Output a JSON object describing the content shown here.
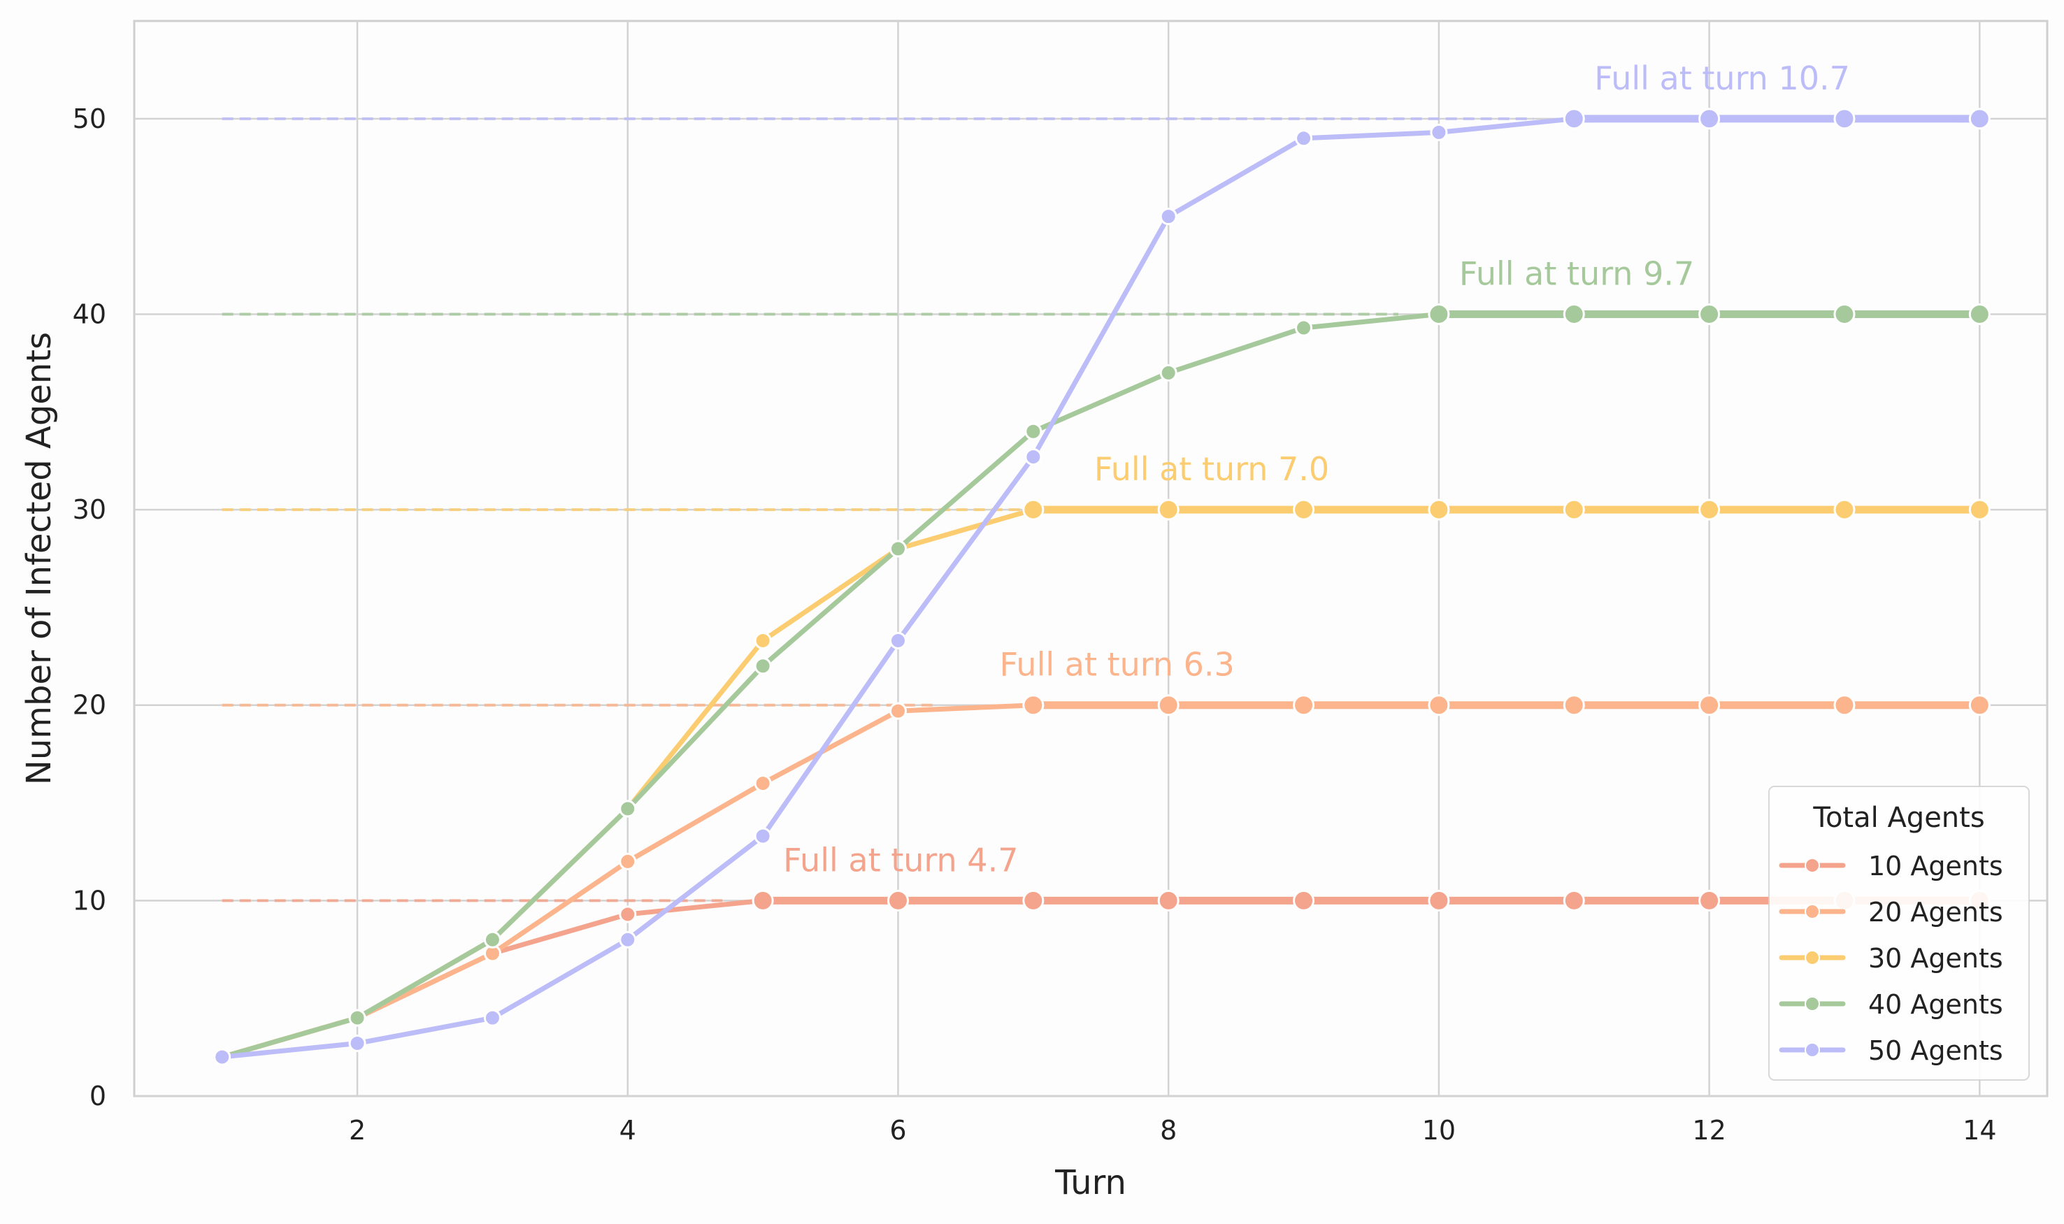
{
  "chart_data": {
    "type": "line",
    "title": "",
    "xlabel": "Turn",
    "ylabel": "Number of Infected Agents",
    "xlim": [
      0.35,
      14.5
    ],
    "ylim": [
      0,
      55
    ],
    "xticks": [
      2,
      4,
      6,
      8,
      10,
      12,
      14
    ],
    "yticks": [
      0,
      10,
      20,
      30,
      40,
      50
    ],
    "grid": true,
    "legend": {
      "title": "Total Agents",
      "placement": "lower-right"
    },
    "x": [
      1,
      2,
      3,
      4,
      5,
      6,
      7,
      8,
      9,
      10,
      11,
      12,
      13,
      14
    ],
    "series": [
      {
        "name": "10 Agents",
        "color": "#f4a48c",
        "total": 10,
        "full_turn": 4.7,
        "annotation": "Full at turn 4.7",
        "values": [
          2,
          4,
          7.3,
          9.3,
          10,
          10,
          10,
          10,
          10,
          10,
          10,
          10,
          10,
          10
        ]
      },
      {
        "name": "20 Agents",
        "color": "#fbb48c",
        "total": 20,
        "full_turn": 6.3,
        "annotation": "Full at turn 6.3",
        "values": [
          2,
          4,
          7.3,
          12,
          16,
          19.7,
          20,
          20,
          20,
          20,
          20,
          20,
          20,
          20
        ]
      },
      {
        "name": "30 Agents",
        "color": "#fbcd70",
        "total": 30,
        "full_turn": 7.0,
        "annotation": "Full at turn 7.0",
        "values": [
          2,
          4,
          8,
          14.7,
          23.3,
          28,
          30,
          30,
          30,
          30,
          30,
          30,
          30,
          30
        ]
      },
      {
        "name": "40 Agents",
        "color": "#a6c99c",
        "total": 40,
        "full_turn": 9.7,
        "annotation": "Full at turn 9.7",
        "values": [
          2,
          4,
          8,
          14.7,
          22,
          28,
          34,
          37,
          39.3,
          40,
          40,
          40,
          40,
          40
        ]
      },
      {
        "name": "50 Agents",
        "color": "#bcbcf8",
        "total": 50,
        "full_turn": 10.7,
        "annotation": "Full at turn 10.7",
        "values": [
          2,
          2.7,
          4,
          8,
          13.3,
          23.3,
          32.7,
          45,
          49,
          49.3,
          50,
          50,
          50,
          50
        ]
      }
    ]
  }
}
